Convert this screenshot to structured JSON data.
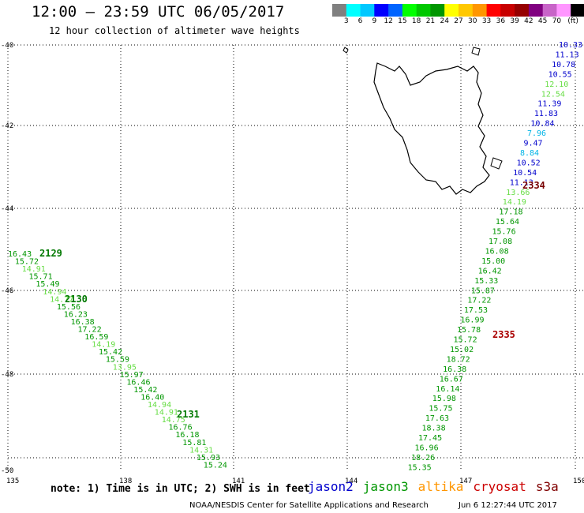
{
  "header": {
    "title": "12:00 – 23:59 UTC 06/05/2017",
    "subtitle": "12 hour collection of altimeter wave heights"
  },
  "legend": {
    "unit": "(ft)",
    "colors": [
      "#808080",
      "#00ffff",
      "#00c8ff",
      "#0000ff",
      "#0064ff",
      "#00ff00",
      "#00c800",
      "#009600",
      "#ffff00",
      "#ffc800",
      "#ff9600",
      "#ff0000",
      "#c80000",
      "#960000",
      "#800080",
      "#c864c8",
      "#ff96ff",
      "#000000"
    ],
    "labels": [
      "3",
      "6",
      "9",
      "12",
      "15",
      "18",
      "21",
      "24",
      "27",
      "30",
      "33",
      "36",
      "39",
      "42",
      "45",
      "70"
    ]
  },
  "axes": {
    "lon_labels": [
      "135",
      "138",
      "141",
      "144",
      "147",
      "150"
    ],
    "lat_labels": [
      "-40",
      "-42",
      "-44",
      "-46",
      "-48",
      "-50"
    ]
  },
  "tracks": {
    "orbits": [
      {
        "label": "2129",
        "color": "#007800"
      },
      {
        "label": "2130",
        "color": "#007800"
      },
      {
        "label": "2131",
        "color": "#007800"
      },
      {
        "label": "2334",
        "color": "#780000"
      },
      {
        "label": "2335",
        "color": "#aa0000"
      }
    ],
    "west": [
      "16.43",
      "15.72",
      "14.91",
      "15.71",
      "15.49",
      "14.94",
      "14.77",
      "15.56",
      "16.23",
      "16.38",
      "17.22",
      "16.59",
      "14.19",
      "15.42",
      "15.59",
      "13.95",
      "15.97",
      "16.46",
      "15.42",
      "16.40",
      "14.94",
      "14.91",
      "14.75",
      "16.76",
      "16.18",
      "15.81",
      "14.31",
      "15.93",
      "15.24"
    ],
    "east": [
      "10.33",
      "11.13",
      "10.78",
      "10.55",
      "12.10",
      "12.54",
      "11.39",
      "11.83",
      "10.84",
      "7.96",
      "9.47",
      "8.84",
      "10.52",
      "10.54",
      "11.13",
      "13.66",
      "14.19",
      "17.18",
      "15.64",
      "15.76",
      "17.08",
      "16.08",
      "15.00",
      "16.42",
      "15.33",
      "15.87",
      "17.22",
      "17.53",
      "16.99",
      "15.78",
      "15.72",
      "15.02",
      "18.72",
      "16.38",
      "16.67",
      "16.14",
      "15.98",
      "15.75",
      "17.63",
      "18.38",
      "17.45",
      "16.96",
      "18.26",
      "15.35"
    ]
  },
  "footer": {
    "note": "note: 1) Time is in UTC; 2) SWH is in feet",
    "satellites": [
      {
        "name": "jason2",
        "color": "#0000cc"
      },
      {
        "name": "jason3",
        "color": "#009600"
      },
      {
        "name": "altika",
        "color": "#ff9600"
      },
      {
        "name": "cryosat",
        "color": "#cc0000"
      },
      {
        "name": "s3a",
        "color": "#800000"
      }
    ],
    "credit": "NOAA/NESDIS Center for Satellite Applications and Research",
    "timestamp": "Jun  6 12:27:44 UTC 2017"
  }
}
